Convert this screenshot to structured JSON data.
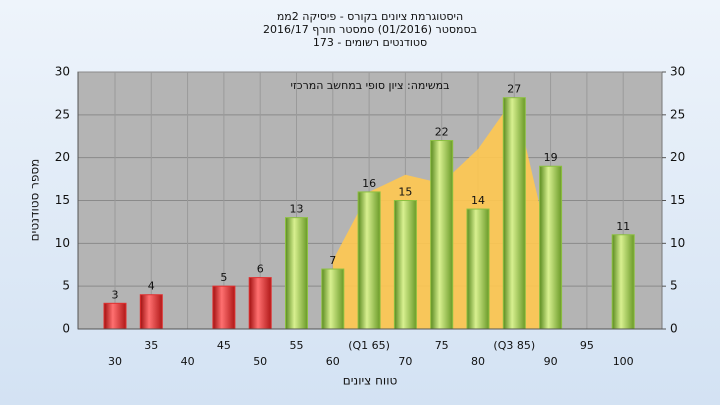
{
  "chart_data": {
    "type": "bar",
    "title": [
      "היסטוגרמת ציונים בקורס - פיסיקה 2ממ",
      "בסמסטר  (01/2016)  סמסטר חורף 2016/17",
      "סטודנטים רשומים - 173"
    ],
    "annotation": "במשימה: ציון סופי במחשב המרכזי",
    "xlabel": "טווח ציונים",
    "ylabel": "מספר סטודנטים",
    "categories": [
      "30",
      "35",
      "40",
      "45",
      "50",
      "55",
      "60",
      "(Q1 65)",
      "70",
      "75",
      "80",
      "(Q3 85)",
      "90",
      "95",
      "100"
    ],
    "series": [
      {
        "values": [
          3,
          4,
          null,
          5,
          6,
          null,
          null,
          null,
          null,
          null,
          null,
          null,
          null,
          null,
          null
        ],
        "color": "#e03030"
      },
      {
        "values": [
          null,
          null,
          null,
          null,
          null,
          13,
          7,
          16,
          15,
          22,
          14,
          27,
          19,
          null,
          11
        ],
        "color": "#8cc040"
      }
    ],
    "area": {
      "values": [
        null,
        null,
        null,
        null,
        null,
        null,
        8,
        16,
        18,
        17,
        21,
        27,
        9,
        null,
        null
      ],
      "color": "#ffc850"
    },
    "ylim": [
      0,
      30
    ],
    "yticks": [
      0,
      5,
      10,
      15,
      20,
      25,
      30
    ],
    "y2lim": [
      0,
      30
    ],
    "y2ticks": [
      0,
      5,
      10,
      15,
      20,
      25,
      30
    ],
    "grid": true
  }
}
